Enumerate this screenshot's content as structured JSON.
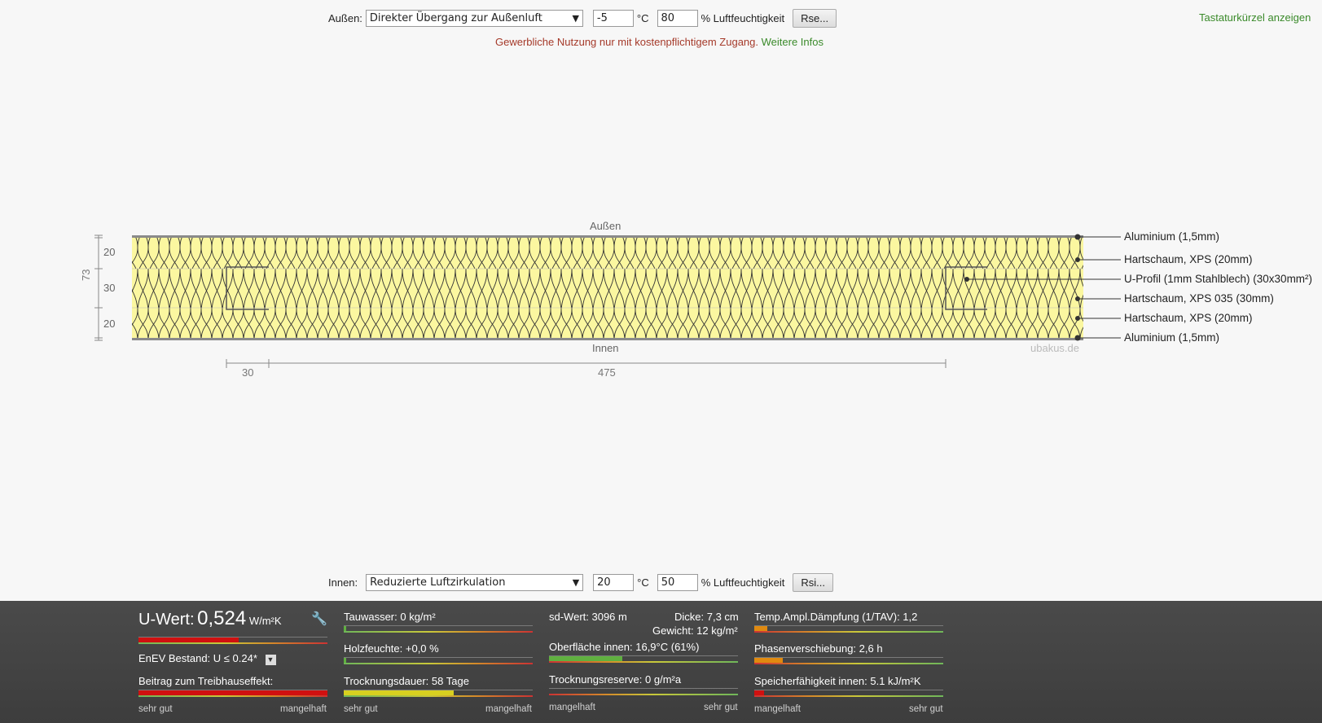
{
  "outside": {
    "label": "Außen:",
    "select_value": "Direkter Übergang zur Außenluft",
    "temp": "-5",
    "temp_unit": "°C",
    "humidity": "80",
    "humidity_label": "% Luftfeuchtigkeit",
    "button": "Rse..."
  },
  "shortcuts_link": "Tastaturkürzel anzeigen",
  "notice": {
    "text": "Gewerbliche Nutzung nur mit kostenpflichtigem Zugang.",
    "link": "Weitere Infos"
  },
  "diagram": {
    "top_label": "Außen",
    "bottom_label": "Innen",
    "watermark": "ubakus.de",
    "total_thickness": "73",
    "layer_dims": [
      "20",
      "30",
      "20"
    ],
    "bottom_dims": [
      "30",
      "475"
    ],
    "layers": [
      "Aluminium (1,5mm)",
      "Hartschaum, XPS (20mm)",
      "U-Profil (1mm Stahlblech) (30x30mm²)",
      "Hartschaum, XPS 035 (30mm)",
      "Hartschaum, XPS (20mm)",
      "Aluminium (1,5mm)"
    ]
  },
  "inside": {
    "label": "Innen:",
    "select_value": "Reduzierte Luftzirkulation",
    "temp": "20",
    "temp_unit": "°C",
    "humidity": "50",
    "humidity_label": "% Luftfeuchtigkeit",
    "button": "Rsi..."
  },
  "results": {
    "u_label": "U-Wert:",
    "u_value": "0,524",
    "u_unit": "W/m²K",
    "enev": "EnEV Bestand: U ≤ 0.24*",
    "greenhouse": "Beitrag zum Treibhauseffekt:",
    "tauwasser": "Tauwasser: 0 kg/m²",
    "holzfeuchte": "Holzfeuchte: +0,0 %",
    "trocknungsdauer": "Trocknungsdauer: 58 Tage",
    "sd_wert": "sd-Wert: 3096 m",
    "dicke": "Dicke: 7,3 cm",
    "gewicht": "Gewicht: 12 kg/m²",
    "oberflaeche": "Oberfläche innen: 16,9°C (61%)",
    "trocknungsreserve": "Trocknungsreserve: 0 g/m²a",
    "temp_ampl": "Temp.Ampl.Dämpfung (1/TAV): 1,2",
    "phasen": "Phasenverschiebung: 2,6 h",
    "speicher": "Speicherfähigkeit innen: 5.1 kJ/m²K",
    "scale_good": "sehr gut",
    "scale_bad": "mangelhaft",
    "bars": {
      "u_wert": 0.53,
      "treibhaus": 1.0,
      "tauwasser": 0.01,
      "holzfeuchte": 0.01,
      "trocknungsdauer": 0.58,
      "oberflaeche": 0.39,
      "trocknungsreserve": 0.0,
      "temp_ampl": 0.07,
      "phasen": 0.15,
      "speicher": 0.05
    },
    "colors": {
      "red": "#d01010",
      "yellow": "#d8d020",
      "green": "#60b040",
      "orange": "#e08a10"
    }
  }
}
